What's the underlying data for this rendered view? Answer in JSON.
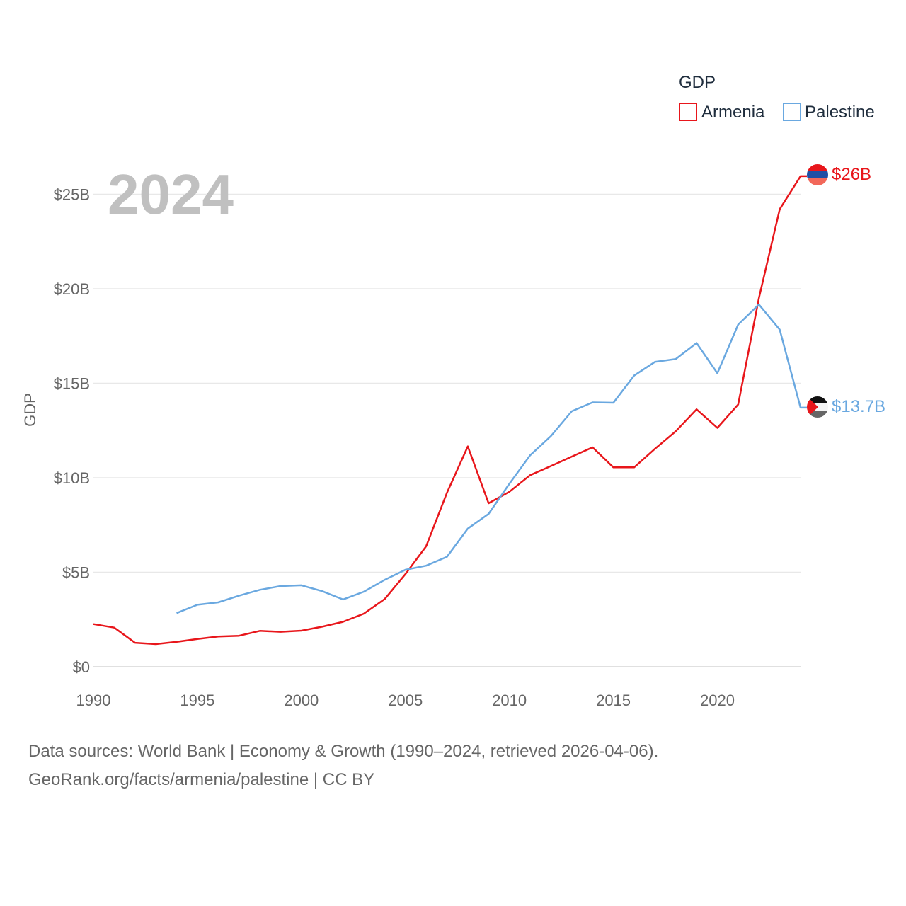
{
  "chart_data": {
    "type": "line",
    "title": "GDP",
    "xlabel": "",
    "ylabel": "GDP",
    "xlim": [
      1990,
      2024
    ],
    "ylim": [
      0,
      27
    ],
    "x_ticks": [
      1990,
      1995,
      2000,
      2005,
      2010,
      2015,
      2020
    ],
    "x_tick_labels": [
      "1990",
      "1995",
      "2000",
      "2005",
      "2010",
      "2015",
      "2020"
    ],
    "y_ticks": [
      0,
      5,
      10,
      15,
      20,
      25
    ],
    "y_tick_labels": [
      "$0",
      "$5B",
      "$10B",
      "$15B",
      "$20B",
      "$25B"
    ],
    "current_year": "2024",
    "legend": {
      "title": "GDP",
      "position": "top-right"
    },
    "series": [
      {
        "name": "Armenia",
        "color": "#e8161b",
        "end_label": "$26B",
        "flag": "armenia",
        "x": [
          1990,
          1991,
          1992,
          1993,
          1994,
          1995,
          1996,
          1997,
          1998,
          1999,
          2000,
          2001,
          2002,
          2003,
          2004,
          2005,
          2006,
          2007,
          2008,
          2009,
          2010,
          2011,
          2012,
          2013,
          2014,
          2015,
          2016,
          2017,
          2018,
          2019,
          2020,
          2021,
          2022,
          2023,
          2024
        ],
        "values": [
          2.26,
          2.07,
          1.27,
          1.2,
          1.32,
          1.47,
          1.6,
          1.64,
          1.9,
          1.85,
          1.91,
          2.12,
          2.38,
          2.81,
          3.58,
          4.9,
          6.38,
          9.21,
          11.66,
          8.65,
          9.26,
          10.14,
          10.62,
          11.12,
          11.61,
          10.55,
          10.55,
          11.53,
          12.46,
          13.62,
          12.64,
          13.88,
          19.51,
          24.21,
          25.96
        ]
      },
      {
        "name": "Palestine",
        "color": "#6aa8e0",
        "end_label": "$13.7B",
        "flag": "palestine",
        "x": [
          1994,
          1995,
          1996,
          1997,
          1998,
          1999,
          2000,
          2001,
          2002,
          2003,
          2004,
          2005,
          2006,
          2007,
          2008,
          2009,
          2010,
          2011,
          2012,
          2013,
          2014,
          2015,
          2016,
          2017,
          2018,
          2019,
          2020,
          2021,
          2022,
          2023,
          2024
        ],
        "values": [
          2.84,
          3.28,
          3.41,
          3.76,
          4.07,
          4.27,
          4.31,
          4.0,
          3.56,
          3.97,
          4.6,
          5.13,
          5.35,
          5.82,
          7.31,
          8.09,
          9.68,
          11.19,
          12.21,
          13.52,
          13.99,
          13.97,
          15.41,
          16.13,
          16.28,
          17.13,
          15.53,
          18.11,
          19.17,
          17.84,
          13.71
        ]
      }
    ]
  },
  "footer": {
    "line1": "Data sources: World Bank | Economy & Growth (1990–2024, retrieved 2026-04-06).",
    "line2": "GeoRank.org/facts/armenia/palestine | CC BY"
  }
}
